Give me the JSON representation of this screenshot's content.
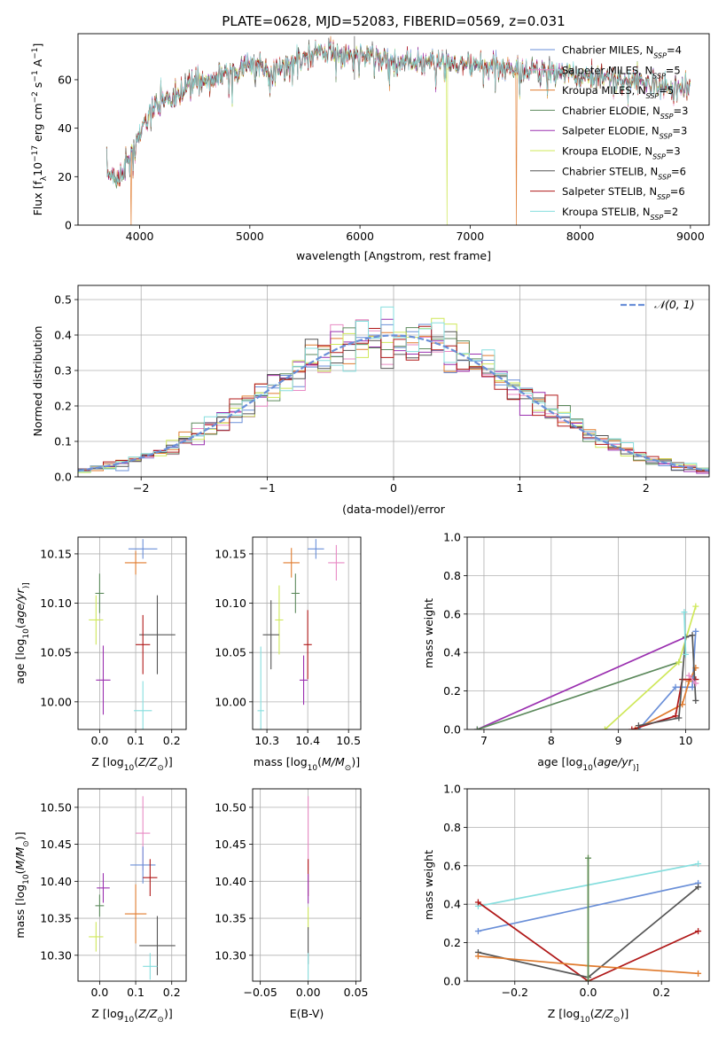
{
  "title": "PLATE=0628, MJD=52083, FIBERID=0569, z=0.031",
  "colors": {
    "chabrier_miles": "#6a8fd8",
    "salpeter_miles": "#e88ac4",
    "kroupa_miles": "#e07b2e",
    "chabrier_elodie": "#5d8a5d",
    "salpeter_elodie": "#9b30b0",
    "kroupa_elodie": "#cfe85a",
    "chabrier_stelib": "#555555",
    "salpeter_stelib": "#b01818",
    "kroupa_stelib": "#86dede",
    "grid": "#b0b0b0"
  },
  "chart_data": [
    {
      "id": "spectrum",
      "type": "line",
      "xlabel": "wavelength [Angstrom, rest frame]",
      "ylabel_parts": [
        "Flux [f",
        "λ",
        "10",
        "−17",
        " erg cm",
        "−2",
        " s",
        "−1",
        " A",
        "−1",
        "]"
      ],
      "xlim": [
        3440,
        9170
      ],
      "ylim": [
        0,
        79
      ],
      "xticks": [
        4000,
        5000,
        6000,
        7000,
        8000,
        9000
      ],
      "yticks": [
        0,
        20,
        40,
        60
      ],
      "grid": false,
      "legend_position": "top-right",
      "legend": [
        {
          "label": "Chabrier MILES, N",
          "sub": "SSP",
          "suffix": "=4",
          "color_key": "chabrier_miles"
        },
        {
          "label": "Salpeter MILES, N",
          "sub": "SSP",
          "suffix": "=5",
          "color_key": "salpeter_miles"
        },
        {
          "label": "Kroupa MILES, N",
          "sub": "SSP",
          "suffix": "=5",
          "color_key": "kroupa_miles"
        },
        {
          "label": "Chabrier ELODIE, N",
          "sub": "SSP",
          "suffix": "=3",
          "color_key": "chabrier_elodie"
        },
        {
          "label": "Salpeter ELODIE, N",
          "sub": "SSP",
          "suffix": "=3",
          "color_key": "salpeter_elodie"
        },
        {
          "label": "Kroupa ELODIE, N",
          "sub": "SSP",
          "suffix": "=3",
          "color_key": "kroupa_elodie"
        },
        {
          "label": "Chabrier STELIB, N",
          "sub": "SSP",
          "suffix": "=6",
          "color_key": "chabrier_stelib"
        },
        {
          "label": "Salpeter STELIB, N",
          "sub": "SSP",
          "suffix": "=6",
          "color_key": "salpeter_stelib"
        },
        {
          "label": "Kroupa STELIB, N",
          "sub": "SSP",
          "suffix": "=2",
          "color_key": "kroupa_stelib"
        }
      ],
      "continuum": [
        [
          3700,
          22
        ],
        [
          3800,
          19
        ],
        [
          3900,
          27
        ],
        [
          3950,
          30
        ],
        [
          4000,
          38
        ],
        [
          4100,
          47
        ],
        [
          4200,
          52
        ],
        [
          4300,
          51
        ],
        [
          4400,
          56
        ],
        [
          4500,
          60
        ],
        [
          4600,
          59
        ],
        [
          4700,
          62
        ],
        [
          4800,
          63
        ],
        [
          4900,
          64
        ],
        [
          5000,
          65
        ],
        [
          5100,
          66
        ],
        [
          5200,
          63
        ],
        [
          5300,
          65
        ],
        [
          5400,
          67
        ],
        [
          5500,
          69
        ],
        [
          5600,
          70
        ],
        [
          5700,
          71
        ],
        [
          5800,
          71
        ],
        [
          5900,
          70
        ],
        [
          6000,
          70
        ],
        [
          6200,
          69
        ],
        [
          6400,
          67
        ],
        [
          6600,
          67
        ],
        [
          6800,
          67
        ],
        [
          7000,
          65
        ],
        [
          7200,
          66
        ],
        [
          7400,
          64
        ],
        [
          7600,
          64
        ],
        [
          7800,
          63
        ],
        [
          8000,
          61
        ],
        [
          8200,
          61
        ],
        [
          8400,
          60
        ],
        [
          8600,
          58
        ],
        [
          8800,
          57
        ],
        [
          9000,
          56
        ]
      ],
      "dropouts": [
        {
          "x": 3920,
          "color_key": "kroupa_miles"
        },
        {
          "x": 6790,
          "color_key": "kroupa_elodie"
        },
        {
          "x": 7420,
          "color_key": "kroupa_miles"
        }
      ]
    },
    {
      "id": "residual_hist",
      "type": "step",
      "xlabel": "(data-model)/error",
      "ylabel": "Normed distribution",
      "xlim": [
        -2.5,
        2.5
      ],
      "ylim": [
        0,
        0.54
      ],
      "xticks": [
        -2,
        -1,
        0,
        1,
        2
      ],
      "yticks": [
        0,
        0.1,
        0.2,
        0.3,
        0.4,
        0.5
      ],
      "grid": true,
      "bin_width": 0.1,
      "reference_label": "𝒩(0, 1)",
      "reference_color_key": "chabrier_miles",
      "legend_position": "top-right"
    },
    {
      "id": "age_vs_Z",
      "type": "scatter",
      "xlabel_parts": [
        "Z [log",
        "10",
        "(",
        "Z/Z",
        "⊙",
        ")]"
      ],
      "ylabel_parts": [
        "age  [log",
        "10",
        "(",
        "age/yr",
        ")]"
      ],
      "xlim": [
        -0.06,
        0.24
      ],
      "ylim": [
        9.972,
        10.167
      ],
      "xticks": [
        0.0,
        0.1,
        0.2
      ],
      "yticks": [
        10.0,
        10.05,
        10.1,
        10.15
      ],
      "grid": true,
      "points": [
        {
          "x": 0.12,
          "y": 10.155,
          "xerr": 0.04,
          "yerr": 0.01,
          "color_key": "chabrier_miles"
        },
        {
          "x": 0.1,
          "y": 10.141,
          "xerr": 0.03,
          "yerr": 0.012,
          "color_key": "kroupa_miles"
        },
        {
          "x": 0.0,
          "y": 10.11,
          "xerr": 0.012,
          "yerr": 0.02,
          "color_key": "chabrier_elodie"
        },
        {
          "x": -0.01,
          "y": 10.083,
          "xerr": 0.02,
          "yerr": 0.025,
          "color_key": "kroupa_elodie"
        },
        {
          "x": 0.16,
          "y": 10.068,
          "xerr": 0.05,
          "yerr": 0.04,
          "color_key": "chabrier_stelib"
        },
        {
          "x": 0.12,
          "y": 10.058,
          "xerr": 0.02,
          "yerr": 0.03,
          "color_key": "salpeter_stelib"
        },
        {
          "x": 0.01,
          "y": 10.022,
          "xerr": 0.02,
          "yerr": 0.035,
          "color_key": "salpeter_elodie"
        },
        {
          "x": 0.12,
          "y": 9.991,
          "xerr": 0.025,
          "yerr": 0.03,
          "color_key": "kroupa_stelib"
        }
      ]
    },
    {
      "id": "age_vs_mass",
      "type": "scatter",
      "xlabel_parts": [
        "mass [log",
        "10",
        "(",
        "M/M",
        "⊙",
        ")]"
      ],
      "ylabel_parts": [],
      "xlim": [
        10.265,
        10.53
      ],
      "ylim": [
        9.972,
        10.167
      ],
      "xticks": [
        10.3,
        10.4,
        10.5
      ],
      "yticks": [
        10.0,
        10.05,
        10.1,
        10.15
      ],
      "grid": true,
      "points": [
        {
          "x": 10.42,
          "y": 10.155,
          "xerr": 0.02,
          "yerr": 0.01,
          "color_key": "chabrier_miles"
        },
        {
          "x": 10.36,
          "y": 10.141,
          "xerr": 0.02,
          "yerr": 0.015,
          "color_key": "kroupa_miles"
        },
        {
          "x": 10.47,
          "y": 10.141,
          "xerr": 0.02,
          "yerr": 0.018,
          "color_key": "salpeter_miles"
        },
        {
          "x": 10.37,
          "y": 10.11,
          "xerr": 0.01,
          "yerr": 0.02,
          "color_key": "chabrier_elodie"
        },
        {
          "x": 10.33,
          "y": 10.083,
          "xerr": 0.01,
          "yerr": 0.035,
          "color_key": "kroupa_elodie"
        },
        {
          "x": 10.31,
          "y": 10.068,
          "xerr": 0.02,
          "yerr": 0.035,
          "color_key": "chabrier_stelib"
        },
        {
          "x": 10.4,
          "y": 10.058,
          "xerr": 0.01,
          "yerr": 0.035,
          "color_key": "salpeter_stelib"
        },
        {
          "x": 10.39,
          "y": 10.022,
          "xerr": 0.01,
          "yerr": 0.025,
          "color_key": "salpeter_elodie"
        },
        {
          "x": 10.285,
          "y": 9.991,
          "xerr": 0.008,
          "yerr": 0.065,
          "color_key": "kroupa_stelib"
        }
      ]
    },
    {
      "id": "weight_vs_age",
      "type": "line",
      "xlabel_parts": [
        "age  [log",
        "10",
        "(",
        "age/yr",
        ")]"
      ],
      "ylabel": "mass weight",
      "xlim": [
        6.75,
        10.35
      ],
      "ylim": [
        0,
        1
      ],
      "xticks": [
        7,
        8,
        9,
        10
      ],
      "yticks": [
        0.0,
        0.2,
        0.4,
        0.6,
        0.8,
        1.0
      ],
      "grid": true,
      "series": [
        {
          "color_key": "salpeter_elodie",
          "x": [
            6.9,
            10.0
          ],
          "y": [
            0.0,
            0.48
          ]
        },
        {
          "color_key": "chabrier_elodie",
          "x": [
            6.9,
            9.9
          ],
          "y": [
            0.0,
            0.35
          ]
        },
        {
          "color_key": "kroupa_elodie",
          "x": [
            8.8,
            9.9,
            10.15
          ],
          "y": [
            0.0,
            0.35,
            0.64
          ]
        },
        {
          "color_key": "chabrier_miles",
          "x": [
            9.3,
            9.85,
            10.1,
            10.15
          ],
          "y": [
            0.0,
            0.22,
            0.22,
            0.51
          ]
        },
        {
          "color_key": "kroupa_miles",
          "x": [
            9.25,
            9.95,
            10.05,
            10.15
          ],
          "y": [
            0.0,
            0.13,
            0.25,
            0.32
          ]
        },
        {
          "color_key": "salpeter_stelib",
          "x": [
            9.2,
            9.85,
            9.95,
            10.15
          ],
          "y": [
            0.0,
            0.07,
            0.26,
            0.26
          ]
        },
        {
          "color_key": "chabrier_stelib",
          "x": [
            9.3,
            9.9,
            10.0,
            10.1,
            10.15
          ],
          "y": [
            0.02,
            0.06,
            0.48,
            0.49,
            0.15
          ]
        },
        {
          "color_key": "kroupa_stelib",
          "x": [
            9.98,
            10.0
          ],
          "y": [
            0.61,
            0.39
          ]
        },
        {
          "color_key": "salpeter_miles",
          "x": [
            10.05,
            10.15
          ],
          "y": [
            0.28,
            0.24
          ]
        }
      ]
    },
    {
      "id": "mass_vs_Z",
      "type": "scatter",
      "xlabel_parts": [
        "Z [log",
        "10",
        "(",
        "Z/Z",
        "⊙",
        ")]"
      ],
      "ylabel_parts": [
        "mass [log",
        "10",
        "(",
        "M/M",
        "⊙",
        ")]"
      ],
      "xlim": [
        -0.06,
        0.24
      ],
      "ylim": [
        10.265,
        10.525
      ],
      "xticks": [
        0.0,
        0.1,
        0.2
      ],
      "yticks": [
        10.3,
        10.35,
        10.4,
        10.45,
        10.5
      ],
      "grid": true,
      "points": [
        {
          "x": 0.12,
          "y": 10.465,
          "xerr": 0.02,
          "yerr": 0.05,
          "color_key": "salpeter_miles"
        },
        {
          "x": 0.12,
          "y": 10.422,
          "xerr": 0.035,
          "yerr": 0.025,
          "color_key": "chabrier_miles"
        },
        {
          "x": 0.14,
          "y": 10.405,
          "xerr": 0.02,
          "yerr": 0.025,
          "color_key": "salpeter_stelib"
        },
        {
          "x": 0.01,
          "y": 10.391,
          "xerr": 0.018,
          "yerr": 0.02,
          "color_key": "salpeter_elodie"
        },
        {
          "x": 0.0,
          "y": 10.367,
          "xerr": 0.012,
          "yerr": 0.015,
          "color_key": "chabrier_elodie"
        },
        {
          "x": 0.1,
          "y": 10.356,
          "xerr": 0.03,
          "yerr": 0.04,
          "color_key": "kroupa_miles"
        },
        {
          "x": -0.01,
          "y": 10.325,
          "xerr": 0.02,
          "yerr": 0.02,
          "color_key": "kroupa_elodie"
        },
        {
          "x": 0.16,
          "y": 10.313,
          "xerr": 0.05,
          "yerr": 0.04,
          "color_key": "chabrier_stelib"
        },
        {
          "x": 0.14,
          "y": 10.285,
          "xerr": 0.02,
          "yerr": 0.018,
          "color_key": "kroupa_stelib"
        }
      ]
    },
    {
      "id": "mass_vs_ebv",
      "type": "scatter",
      "xlabel": "E(B-V)",
      "ylabel_parts": [],
      "xlim": [
        -0.058,
        0.055
      ],
      "ylim": [
        10.265,
        10.525
      ],
      "xticks": [
        -0.05,
        0.0,
        0.05
      ],
      "yticks": [
        10.3,
        10.35,
        10.4,
        10.45,
        10.5
      ],
      "grid": true,
      "points": [
        {
          "x": 0.0,
          "y": 10.465,
          "xerr": 0.0,
          "yerr": 0.05,
          "color_key": "salpeter_miles"
        },
        {
          "x": 0.0,
          "y": 10.405,
          "xerr": 0.0,
          "yerr": 0.025,
          "color_key": "salpeter_stelib"
        },
        {
          "x": 0.0,
          "y": 10.39,
          "xerr": 0.0,
          "yerr": 0.02,
          "color_key": "salpeter_elodie"
        },
        {
          "x": 0.0,
          "y": 10.35,
          "xerr": 0.0,
          "yerr": 0.015,
          "color_key": "kroupa_elodie"
        },
        {
          "x": 0.0,
          "y": 10.313,
          "xerr": 0.0,
          "yerr": 0.025,
          "color_key": "chabrier_stelib"
        },
        {
          "x": 0.0,
          "y": 10.285,
          "xerr": 0.0,
          "yerr": 0.018,
          "color_key": "kroupa_stelib"
        }
      ]
    },
    {
      "id": "weight_vs_Z",
      "type": "line",
      "xlabel_parts": [
        "Z [log",
        "10",
        "(",
        "Z/Z",
        "⊙",
        ")]"
      ],
      "ylabel": "mass weight",
      "xlim": [
        -0.33,
        0.33
      ],
      "ylim": [
        0,
        1
      ],
      "xticks": [
        -0.2,
        0.0,
        0.2
      ],
      "xtick_labels": [
        "−0.2",
        "0.0",
        "0.2"
      ],
      "yticks": [
        0.0,
        0.2,
        0.4,
        0.6,
        0.8,
        1.0
      ],
      "grid": true,
      "series": [
        {
          "color_key": "kroupa_stelib",
          "x": [
            -0.3,
            0.3
          ],
          "y": [
            0.39,
            0.61
          ]
        },
        {
          "color_key": "chabrier_miles",
          "x": [
            -0.3,
            0.3
          ],
          "y": [
            0.26,
            0.51
          ]
        },
        {
          "color_key": "salpeter_stelib",
          "x": [
            -0.3,
            0.0,
            0.3
          ],
          "y": [
            0.41,
            0.0,
            0.26
          ]
        },
        {
          "color_key": "chabrier_stelib",
          "x": [
            -0.3,
            0.0,
            0.3
          ],
          "y": [
            0.15,
            0.02,
            0.49
          ]
        },
        {
          "color_key": "kroupa_miles",
          "x": [
            -0.3,
            0.0,
            0.3
          ],
          "y": [
            0.13,
            0.08,
            0.04
          ]
        },
        {
          "color_key": "kroupa_elodie",
          "x": [
            0.0,
            0.0
          ],
          "y": [
            0.0,
            0.64
          ]
        },
        {
          "color_key": "chabrier_elodie",
          "x": [
            0.0,
            0.0
          ],
          "y": [
            0.0,
            0.64
          ]
        }
      ]
    }
  ]
}
